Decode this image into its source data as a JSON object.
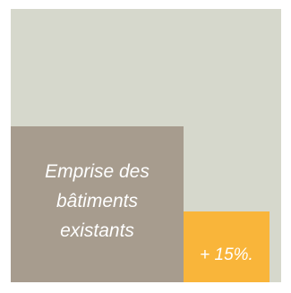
{
  "diagram": {
    "existing_footprint": {
      "label_lines": [
        "Emprise des",
        "bâtiments",
        "existants"
      ]
    },
    "extension": {
      "label": "+ 15%."
    }
  },
  "colors": {
    "outer_square": "#d6d8cc",
    "existing_block": "#a79c8e",
    "extension_block": "#f9b53a",
    "label_text": "#ffffff"
  }
}
